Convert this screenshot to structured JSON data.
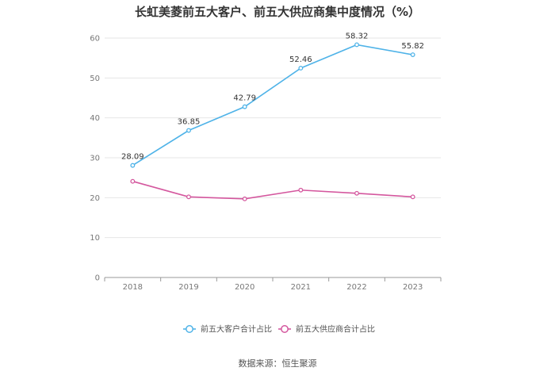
{
  "chart_data": {
    "type": "line",
    "title": "长虹美菱前五大客户、前五大供应商集中度情况（%）",
    "xlabel": "",
    "ylabel": "",
    "categories": [
      "2018",
      "2019",
      "2020",
      "2021",
      "2022",
      "2023"
    ],
    "ylim": [
      0,
      60
    ],
    "yticks": [
      0,
      10,
      20,
      30,
      40,
      50,
      60
    ],
    "grid": true,
    "legend_position": "bottom",
    "series": [
      {
        "name": "前五大客户合计占比",
        "color": "#4fb3e8",
        "values": [
          28.09,
          36.85,
          42.79,
          52.46,
          58.32,
          55.82
        ],
        "labels": [
          "28.09",
          "36.85",
          "42.79",
          "52.46",
          "58.32",
          "55.82"
        ]
      },
      {
        "name": "前五大供应商合计占比",
        "color": "#d4579e",
        "values": [
          24.1,
          20.2,
          19.7,
          21.9,
          21.1,
          20.2
        ]
      }
    ]
  },
  "source_text": "数据来源：恒生聚源"
}
